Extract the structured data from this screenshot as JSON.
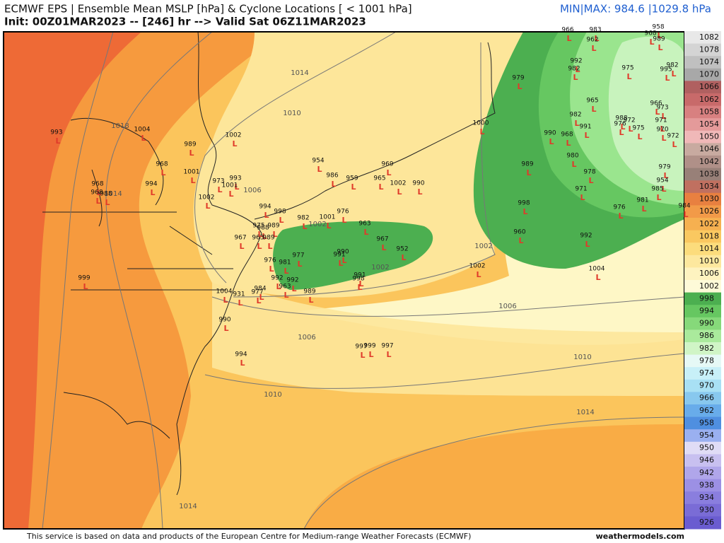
{
  "header": {
    "title": "ECMWF EPS | Ensemble Mean MSLP [hPa] & Cyclone Locations [ < 1001 hPa]",
    "subtitle": "Init: 00Z01MAR2023 -- [246] hr --> Valid Sat 06Z11MAR2023",
    "minmax": "MIN|MAX: 984.6 |1029.8 hPa"
  },
  "footer": {
    "credit": "This service is based on data and products of the European Centre for Medium-range Weather Forecasts (ECMWF)",
    "site": "weathermodels.com"
  },
  "colorbar": {
    "labels": [
      1082,
      1078,
      1074,
      1070,
      1066,
      1062,
      1058,
      1054,
      1050,
      1046,
      1042,
      1038,
      1034,
      1030,
      1026,
      1022,
      1018,
      1014,
      1010,
      1006,
      1002,
      998,
      994,
      990,
      986,
      982,
      978,
      974,
      970,
      966,
      962,
      958,
      954,
      950,
      946,
      942,
      938,
      934,
      930,
      926
    ]
  },
  "contour_labels": [
    1014,
    1010,
    1018,
    1014,
    1006,
    1002,
    1002,
    1002,
    1006,
    1006,
    1010,
    1010,
    1014,
    1014
  ],
  "cyclone_pressures": [
    966,
    983,
    962,
    958,
    968,
    989,
    992,
    982,
    975,
    995,
    982,
    979,
    965,
    966,
    973,
    982,
    988,
    972,
    971,
    991,
    976,
    975,
    970,
    972,
    990,
    968,
    1000,
    980,
    989,
    978,
    979,
    954,
    971,
    985,
    981,
    976,
    984,
    998,
    992,
    960,
    1004,
    1002,
    993,
    1004,
    989,
    1002,
    1001,
    968,
    968,
    994,
    973,
    993,
    1001,
    968,
    988,
    954,
    986,
    969,
    959,
    965,
    1002,
    990,
    1002,
    994,
    998,
    982,
    1001,
    976,
    963,
    967,
    975,
    989,
    988,
    963,
    989,
    967,
    952,
    977,
    990,
    991,
    976,
    981,
    991,
    998,
    992,
    992,
    963,
    984,
    977,
    989,
    1004,
    931,
    999,
    990,
    994,
    997,
    999,
    997
  ]
}
